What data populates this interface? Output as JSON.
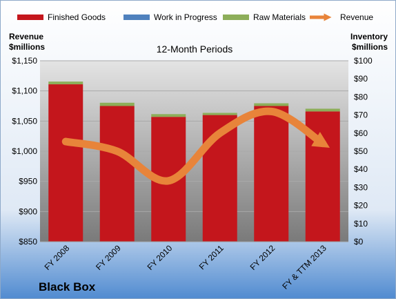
{
  "chart_data": {
    "type": "bar",
    "subtitle": "12-Month Periods",
    "brand": "Black Box",
    "left_axis_title": [
      "Revenue",
      "$millions"
    ],
    "right_axis_title": [
      "Inventory",
      "$millions"
    ],
    "categories": [
      "FY 2008",
      "FY 2009",
      "FY 2010",
      "FY 2011",
      "FY 2012",
      "FY & TTM 2013"
    ],
    "left_axis": {
      "ylim": [
        850,
        1150
      ],
      "ticks": [
        850,
        900,
        950,
        1000,
        1050,
        1100,
        1150
      ],
      "tick_labels": [
        "$850",
        "$900",
        "$950",
        "$1,000",
        "$1,050",
        "$1,100",
        "$1,150"
      ]
    },
    "right_axis": {
      "ylim": [
        0,
        100
      ],
      "ticks": [
        0,
        10,
        20,
        30,
        40,
        50,
        60,
        70,
        80,
        90,
        100
      ],
      "tick_labels": [
        "$0",
        "$10",
        "$20",
        "$30",
        "$40",
        "$50",
        "$60",
        "$70",
        "$80",
        "$90",
        "$100"
      ]
    },
    "grid": true,
    "legend_position": "top",
    "series": [
      {
        "name": "Finished Goods",
        "axis": "right",
        "kind": "stacked-bar",
        "color": "#c4161c",
        "values": [
          87,
          75,
          69,
          70,
          75,
          72
        ]
      },
      {
        "name": "Work in Progress",
        "axis": "right",
        "kind": "stacked-bar",
        "color": "#4f81bd",
        "values": [
          0,
          0,
          0,
          0,
          0,
          0
        ]
      },
      {
        "name": "Raw Materials",
        "axis": "right",
        "kind": "stacked-bar",
        "color": "#8dae59",
        "values": [
          1.5,
          1.8,
          1.5,
          1.2,
          1.5,
          1.5
        ]
      },
      {
        "name": "Revenue",
        "axis": "left",
        "kind": "line",
        "color": "#e8843a",
        "values": [
          1016,
          1000,
          951,
          1030,
          1066,
          1013
        ]
      }
    ]
  }
}
